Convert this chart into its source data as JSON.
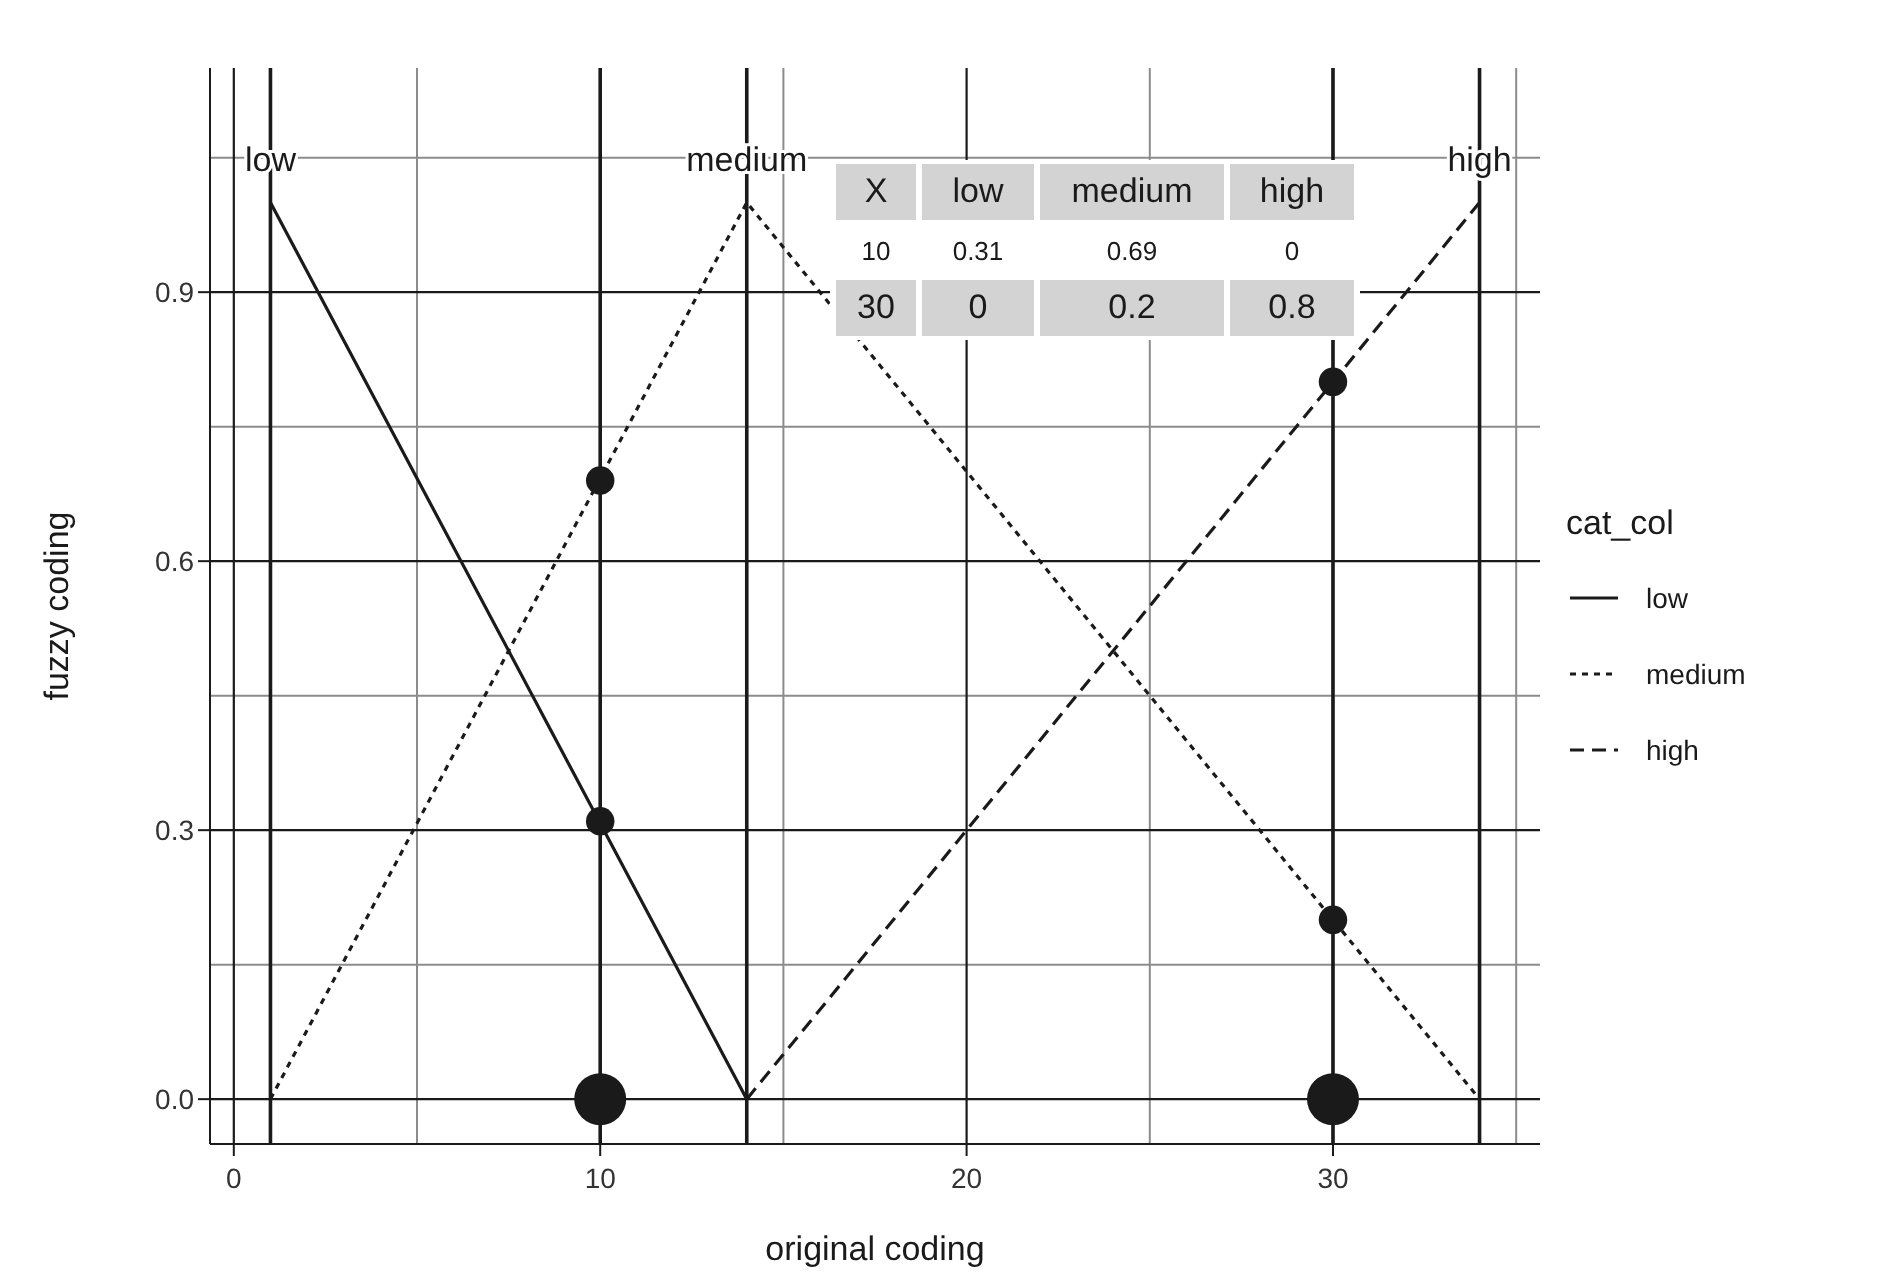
{
  "chart_data": {
    "type": "line",
    "xlabel": "original coding",
    "ylabel": "fuzzy coding",
    "legend_title": "cat_col",
    "legend": "right",
    "grid": true,
    "xlim": [
      -0.65,
      35.65
    ],
    "ylim": [
      -0.05,
      1.15
    ],
    "xticks": [
      0,
      10,
      20,
      30
    ],
    "yticks": [
      {
        "value": 0,
        "label": "0.0"
      },
      0.3,
      0.6,
      0.9
    ],
    "ref_lines": [
      {
        "axis": "x",
        "value": 1,
        "color": "#1a1a1a"
      },
      {
        "axis": "x",
        "value": 10,
        "color": "#1a1a1a"
      },
      {
        "axis": "x",
        "value": 14,
        "color": "#1a1a1a"
      },
      {
        "axis": "x",
        "value": 30,
        "color": "#1a1a1a"
      },
      {
        "axis": "x",
        "value": 34,
        "color": "#1a1a1a"
      }
    ],
    "series": [
      {
        "name": "low",
        "color": "#1a1a1a",
        "line_style": "solid",
        "x": [
          1,
          14
        ],
        "values": [
          1,
          0
        ]
      },
      {
        "name": "medium",
        "color": "#1a1a1a",
        "line_style": "dotted",
        "x": [
          1,
          14,
          34
        ],
        "values": [
          0,
          1,
          0
        ]
      },
      {
        "name": "high",
        "color": "#1a1a1a",
        "line_style": "dashed",
        "x": [
          14,
          34
        ],
        "values": [
          0,
          1
        ]
      },
      {
        "type": "bubble",
        "color": "#1a1a1a",
        "x": [
          10,
          10,
          10,
          30,
          30,
          30
        ],
        "values": [
          0,
          0.31,
          0.69,
          0,
          0.2,
          0.8
        ],
        "sizes": [
          1,
          0.3,
          0.3,
          1,
          0.3,
          0.3
        ]
      }
    ],
    "annotations": [
      "X",
      "low",
      "medium",
      "high",
      "10",
      "0.31",
      "0.69",
      "0",
      "30",
      "0",
      "0.2",
      "0.8"
    ]
  }
}
